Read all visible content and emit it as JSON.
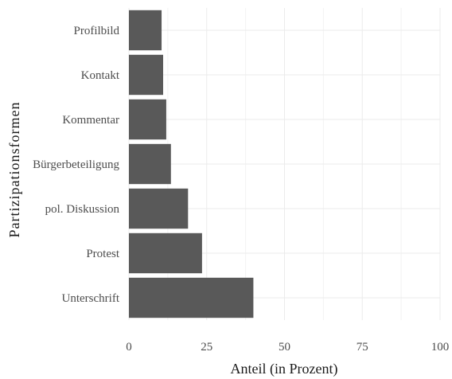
{
  "chart_data": {
    "type": "bar",
    "orientation": "horizontal",
    "title": "",
    "xlabel": "Anteil (in Prozent)",
    "ylabel": "Partizipationsformen",
    "categories": [
      "Unterschrift",
      "Protest",
      "pol. Diskussion",
      "Bürgerbeteiligung",
      "Kommentar",
      "Kontakt",
      "Profilbild"
    ],
    "values": [
      40,
      23.5,
      19,
      13.5,
      12,
      11,
      10.5
    ],
    "xlim": [
      0,
      100
    ],
    "xticks": [
      "0",
      "25",
      "50",
      "75",
      "100"
    ],
    "grid": true,
    "bar_color": "#595959",
    "grid_color": "#ebebeb"
  }
}
